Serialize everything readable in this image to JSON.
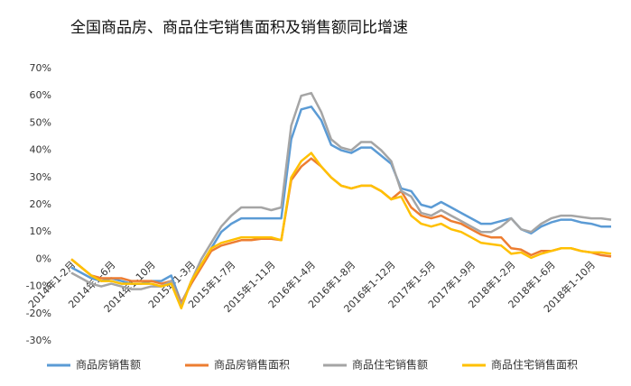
{
  "chart_data": {
    "type": "line",
    "title": "全国商品房、商品住宅销售面积及销售额同比增速",
    "categories": [
      "2014年1-2月",
      null,
      null,
      null,
      "2014年1-6月",
      null,
      null,
      null,
      "2014年1-10月",
      null,
      null,
      null,
      "2015年1-3月",
      null,
      null,
      null,
      "2015年1-7月",
      null,
      null,
      null,
      "2015年1-11月",
      null,
      null,
      null,
      "2016年1-4月",
      null,
      null,
      null,
      "2016年1-8月",
      null,
      null,
      null,
      "2016年1-12月",
      null,
      null,
      null,
      "2017年1-5月",
      null,
      null,
      null,
      "2017年1-9月",
      null,
      null,
      null,
      "2018年1-2月",
      null,
      null,
      null,
      "2018年1-6月",
      null,
      null,
      null,
      "2018年1-10月",
      null,
      null
    ],
    "series": [
      {
        "name": "商品房销售额",
        "color": "#5b9bd5",
        "values": [
          -3,
          -5,
          -7,
          -8,
          -7,
          -8,
          -9,
          -9,
          -8,
          -8,
          -6,
          -16,
          -9,
          -2,
          4,
          10,
          13,
          15,
          15,
          15,
          15,
          15,
          44,
          55,
          56,
          51,
          42,
          40,
          39,
          41,
          41,
          38,
          35,
          26,
          25,
          20,
          19,
          21,
          19,
          17,
          15,
          13,
          13,
          14,
          15,
          11,
          9.5,
          12,
          13.5,
          14.5,
          14.5,
          13.5,
          13,
          12,
          12
        ]
      },
      {
        "name": "商品房销售面积",
        "color": "#ed7d31",
        "values": [
          0,
          -3,
          -6,
          -7,
          -7,
          -7,
          -8,
          -8,
          -8,
          -9,
          -8,
          -16,
          -9,
          -3,
          3,
          5,
          6,
          7,
          7,
          7.5,
          7.5,
          7,
          29,
          34,
          37,
          34,
          30,
          27,
          26,
          27,
          27,
          25,
          22,
          25,
          19,
          16,
          15,
          16,
          14,
          13,
          11,
          9,
          8,
          8,
          4,
          3.5,
          1.5,
          3,
          3,
          4,
          4,
          3,
          2.5,
          1.5,
          1
        ]
      },
      {
        "name": "商品住宅销售额",
        "color": "#a5a5a5",
        "values": [
          -5,
          -7,
          -9,
          -10,
          -9,
          -10,
          -11,
          -11,
          -10,
          -10,
          -8,
          -17,
          -8,
          0,
          6,
          12,
          16,
          19,
          19,
          19,
          18,
          19,
          49,
          60,
          61,
          54,
          44,
          41,
          40,
          43,
          43,
          40,
          36,
          25,
          23,
          17,
          16,
          18,
          16,
          14,
          12,
          10,
          10,
          12,
          15,
          11,
          10,
          13,
          15,
          16,
          16,
          15.5,
          15,
          15,
          14.5
        ]
      },
      {
        "name": "商品住宅销售面积",
        "color": "#ffc000",
        "values": [
          0,
          -3,
          -6,
          -8,
          -8,
          -9,
          -9,
          -9,
          -9,
          -10,
          -9,
          -18,
          -8,
          -2,
          4,
          6,
          7,
          8,
          8,
          8,
          8,
          7,
          30,
          36,
          39,
          34,
          30,
          27,
          26,
          27,
          27,
          25,
          22,
          23,
          16,
          13,
          12,
          13,
          11,
          10,
          8,
          6,
          5.5,
          5,
          2,
          2.5,
          0.5,
          2,
          3,
          4,
          4,
          3,
          2.5,
          2.5,
          2
        ]
      }
    ],
    "ylim": [
      -30,
      70
    ],
    "yticks": [
      {
        "value": -30,
        "label": "-30%"
      },
      {
        "value": -20,
        "label": "-20%"
      },
      {
        "value": -10,
        "label": "-10%"
      },
      {
        "value": 0,
        "label": "0%"
      },
      {
        "value": 10,
        "label": "10%"
      },
      {
        "value": 20,
        "label": "20%"
      },
      {
        "value": 30,
        "label": "30%"
      },
      {
        "value": 40,
        "label": "40%"
      },
      {
        "value": 50,
        "label": "50%"
      },
      {
        "value": 60,
        "label": "60%"
      },
      {
        "value": 70,
        "label": "70%"
      }
    ],
    "grid": false,
    "legend": "bottom"
  }
}
